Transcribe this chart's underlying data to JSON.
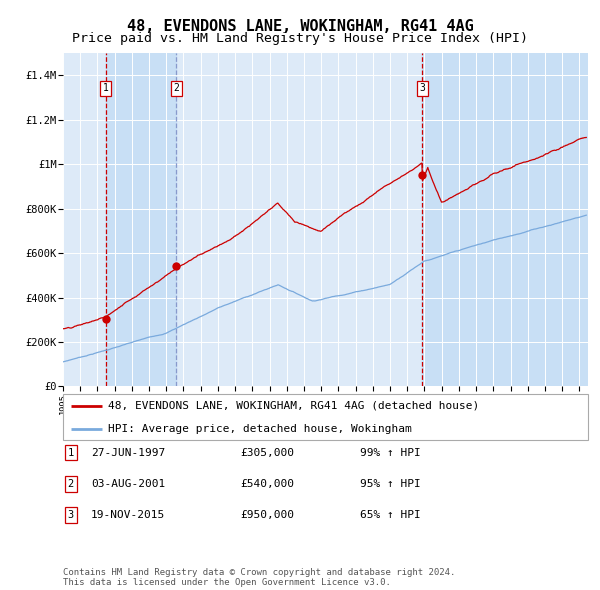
{
  "title": "48, EVENDONS LANE, WOKINGHAM, RG41 4AG",
  "subtitle": "Price paid vs. HM Land Registry's House Price Index (HPI)",
  "ylim": [
    0,
    1500000
  ],
  "yticks": [
    0,
    200000,
    400000,
    600000,
    800000,
    1000000,
    1200000,
    1400000
  ],
  "ytick_labels": [
    "£0",
    "£200K",
    "£400K",
    "£600K",
    "£800K",
    "£1M",
    "£1.2M",
    "£1.4M"
  ],
  "x_start_year": 1995,
  "x_end_year": 2025,
  "sale_prices": [
    305000,
    540000,
    950000
  ],
  "sale_labels": [
    "1",
    "2",
    "3"
  ],
  "sale_dot_color": "#cc0000",
  "sale_line_color": "#cc0000",
  "hpi_line_color": "#7aaadd",
  "vline_colors": [
    "#cc0000",
    "#8899cc",
    "#cc0000"
  ],
  "background_color": "#ffffff",
  "plot_bg_color": "#ddeaf8",
  "shaded_color": "#c8dff5",
  "grid_color": "#ffffff",
  "legend_entries": [
    "48, EVENDONS LANE, WOKINGHAM, RG41 4AG (detached house)",
    "HPI: Average price, detached house, Wokingham"
  ],
  "table_rows": [
    [
      "1",
      "27-JUN-1997",
      "£305,000",
      "99% ↑ HPI"
    ],
    [
      "2",
      "03-AUG-2001",
      "£540,000",
      "95% ↑ HPI"
    ],
    [
      "3",
      "19-NOV-2015",
      "£950,000",
      "65% ↑ HPI"
    ]
  ],
  "footer_text": "Contains HM Land Registry data © Crown copyright and database right 2024.\nThis data is licensed under the Open Government Licence v3.0.",
  "title_fontsize": 11,
  "subtitle_fontsize": 9.5,
  "tick_fontsize": 7.5,
  "legend_fontsize": 8,
  "table_fontsize": 8,
  "footer_fontsize": 6.5
}
